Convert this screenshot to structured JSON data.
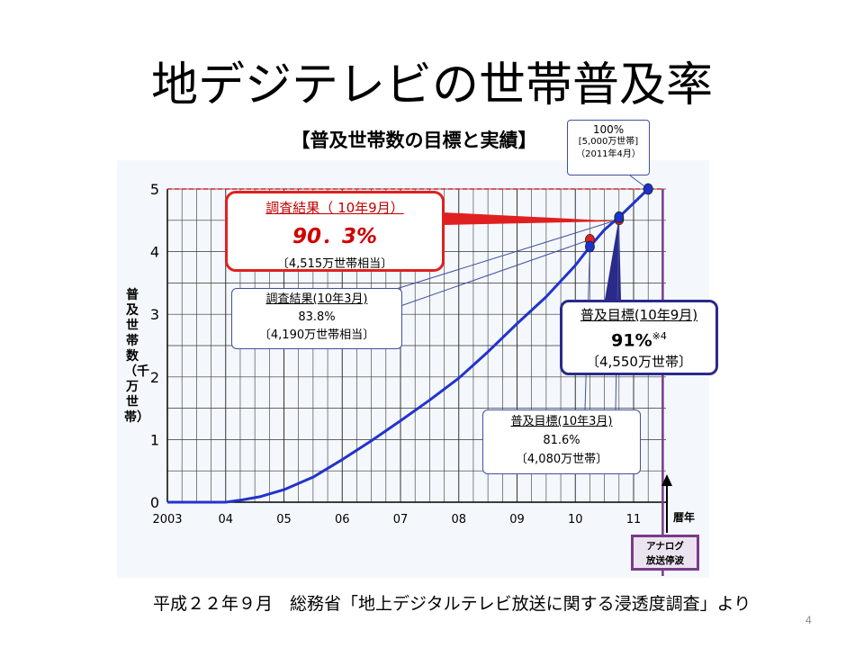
{
  "slide": {
    "title": "地デジテレビの世帯普及率",
    "source": "平成２２年９月　総務省「地上デジタルテレビ放送に関する浸透度調査」より",
    "page_number": "4"
  },
  "colors": {
    "line": "#2233cc",
    "target_line": "#e02020",
    "grid": "#333333",
    "plot_bg": "#f4f8fc",
    "actual_point": "#e02020",
    "target_point": "#1a33cc",
    "deadline": "#7a3a8a"
  },
  "chart_data": {
    "type": "line",
    "title": "【普及世帯数の目標と実績】",
    "ylabel": "普及世帯数（千万世帯）",
    "xlabel": "暦年",
    "ylim": [
      0,
      5
    ],
    "xlim": [
      2003,
      2011.9
    ],
    "grid": true,
    "x_ticks": [
      "2003",
      "04",
      "05",
      "06",
      "07",
      "08",
      "09",
      "10",
      "11"
    ],
    "y_ticks": [
      "0",
      "1",
      "2",
      "3",
      "4",
      "5"
    ],
    "series": [
      {
        "x": [
          2003,
          2004,
          2004.3,
          2004.6,
          2005,
          2005.5,
          2006,
          2006.5,
          2007,
          2007.5,
          2008,
          2008.5,
          2009,
          2009.5,
          2010,
          2010.25,
          2010.5,
          2010.75,
          2011.25
        ],
        "values": [
          0,
          0,
          0.04,
          0.09,
          0.2,
          0.4,
          0.68,
          0.98,
          1.3,
          1.63,
          1.98,
          2.4,
          2.85,
          3.28,
          3.78,
          4.08,
          4.35,
          4.55,
          5.0
        ]
      }
    ],
    "points": [
      {
        "kind": "actual",
        "x": 2010.25,
        "y": 4.19
      },
      {
        "kind": "actual",
        "x": 2010.75,
        "y": 4.515
      },
      {
        "kind": "target",
        "x": 2010.25,
        "y": 4.08
      },
      {
        "kind": "target",
        "x": 2010.75,
        "y": 4.55
      },
      {
        "kind": "target",
        "x": 2011.25,
        "y": 5.0
      }
    ],
    "target_level": 5,
    "deadline_x": 2011.5,
    "annotations": {
      "result_sep": {
        "line1": "調査結果（ 10年9月）",
        "line2": "90．3%",
        "line3": "〔4,515万世帯相当〕"
      },
      "result_mar": {
        "line1": "調査結果(10年3月)",
        "line2": "83.8%",
        "line3": "〔4,190万世帯相当〕"
      },
      "target_sep": {
        "line1": "普及目標(10年9月)",
        "line2": "91%",
        "note": "※4",
        "line3": "〔4,550万世帯〕"
      },
      "target_mar": {
        "line1": "普及目標(10年3月)",
        "line2": "81.6%",
        "line3": "〔4,080万世帯〕"
      },
      "goal": {
        "line1": "100%",
        "line2": "[5,000万世帯]",
        "line3": "（2011年4月）"
      },
      "analog": {
        "line1": "アナログ",
        "line2": "放送停波"
      }
    }
  }
}
